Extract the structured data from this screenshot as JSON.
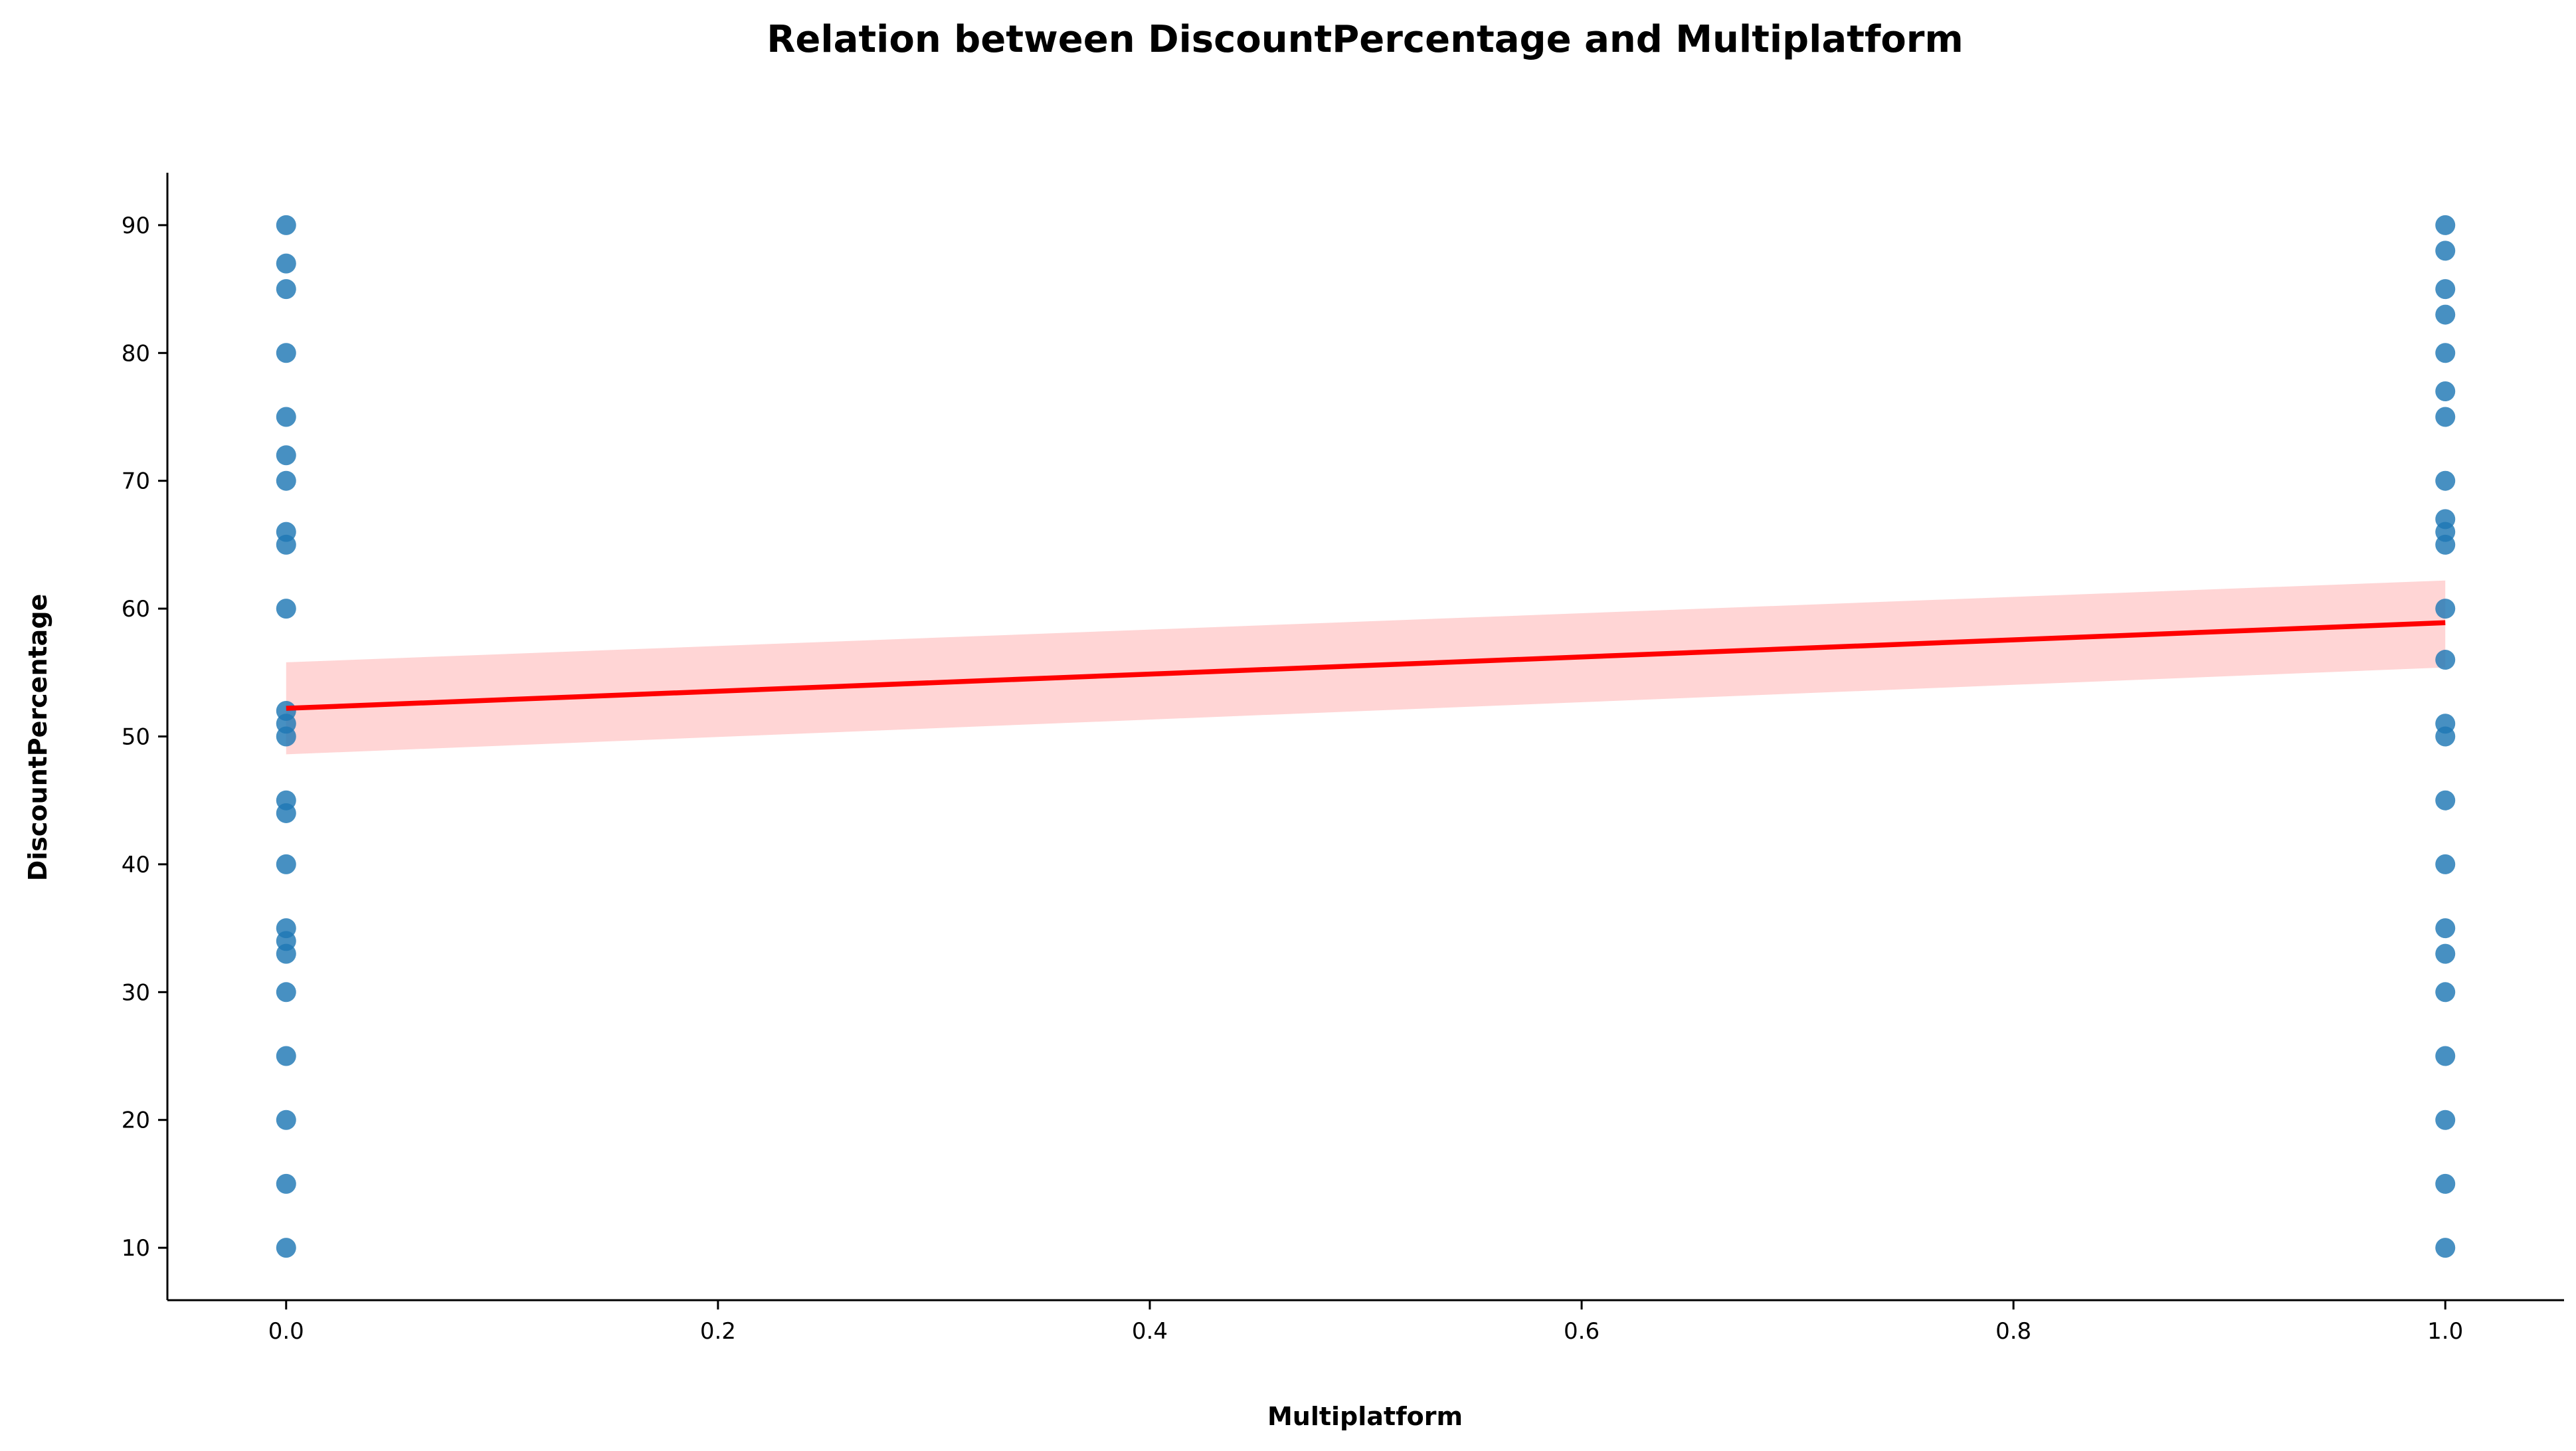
{
  "chart_data": {
    "type": "scatter",
    "title": "Relation between DiscountPercentage and Multiplatform",
    "xlabel": "Multiplatform",
    "ylabel": "DiscountPercentage",
    "xlim": [
      -0.055,
      1.055
    ],
    "ylim": [
      5.9,
      94.1
    ],
    "x_ticks": [
      0.0,
      0.2,
      0.4,
      0.6,
      0.8,
      1.0
    ],
    "x_tick_labels": [
      "0.0",
      "0.2",
      "0.4",
      "0.6",
      "0.8",
      "1.0"
    ],
    "y_ticks": [
      10,
      20,
      30,
      40,
      50,
      60,
      70,
      80,
      90
    ],
    "y_tick_labels": [
      "10",
      "20",
      "30",
      "40",
      "50",
      "60",
      "70",
      "80",
      "90"
    ],
    "grid": false,
    "points": [
      {
        "x": 0,
        "y": 90
      },
      {
        "x": 0,
        "y": 87
      },
      {
        "x": 0,
        "y": 85
      },
      {
        "x": 0,
        "y": 80
      },
      {
        "x": 0,
        "y": 75
      },
      {
        "x": 0,
        "y": 72
      },
      {
        "x": 0,
        "y": 70
      },
      {
        "x": 0,
        "y": 66
      },
      {
        "x": 0,
        "y": 65
      },
      {
        "x": 0,
        "y": 60
      },
      {
        "x": 0,
        "y": 52
      },
      {
        "x": 0,
        "y": 51
      },
      {
        "x": 0,
        "y": 50
      },
      {
        "x": 0,
        "y": 45
      },
      {
        "x": 0,
        "y": 44
      },
      {
        "x": 0,
        "y": 40
      },
      {
        "x": 0,
        "y": 35
      },
      {
        "x": 0,
        "y": 34
      },
      {
        "x": 0,
        "y": 33
      },
      {
        "x": 0,
        "y": 30
      },
      {
        "x": 0,
        "y": 25
      },
      {
        "x": 0,
        "y": 20
      },
      {
        "x": 0,
        "y": 15
      },
      {
        "x": 0,
        "y": 10
      },
      {
        "x": 1,
        "y": 90
      },
      {
        "x": 1,
        "y": 88
      },
      {
        "x": 1,
        "y": 85
      },
      {
        "x": 1,
        "y": 83
      },
      {
        "x": 1,
        "y": 80
      },
      {
        "x": 1,
        "y": 77
      },
      {
        "x": 1,
        "y": 75
      },
      {
        "x": 1,
        "y": 70
      },
      {
        "x": 1,
        "y": 67
      },
      {
        "x": 1,
        "y": 66
      },
      {
        "x": 1,
        "y": 65
      },
      {
        "x": 1,
        "y": 60
      },
      {
        "x": 1,
        "y": 56
      },
      {
        "x": 1,
        "y": 51
      },
      {
        "x": 1,
        "y": 50
      },
      {
        "x": 1,
        "y": 45
      },
      {
        "x": 1,
        "y": 40
      },
      {
        "x": 1,
        "y": 35
      },
      {
        "x": 1,
        "y": 33
      },
      {
        "x": 1,
        "y": 30
      },
      {
        "x": 1,
        "y": 25
      },
      {
        "x": 1,
        "y": 20
      },
      {
        "x": 1,
        "y": 15
      },
      {
        "x": 1,
        "y": 10
      }
    ],
    "regression": {
      "x": [
        0,
        1
      ],
      "y": [
        52.2,
        58.9
      ],
      "ci_lower": [
        48.6,
        55.4
      ],
      "ci_upper": [
        55.8,
        62.2
      ]
    },
    "colors": {
      "points": "#1f77b4",
      "regression_line": "#ff0000",
      "confidence_band": "#ffb3b3"
    }
  }
}
